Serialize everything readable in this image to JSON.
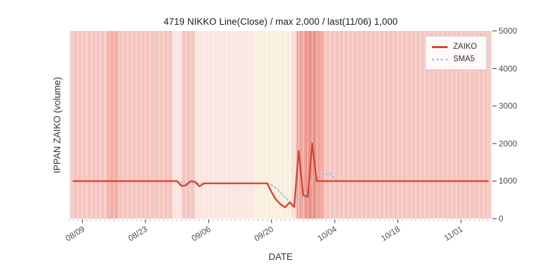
{
  "chart_data": {
    "type": "line",
    "title": "4719 NIKKO Line(Close) / max 2,000 / last(11/06) 1,000",
    "xlabel": "DATE",
    "ylabel": "IPPAN ZAIKO (volume)",
    "ylim": [
      0,
      5000
    ],
    "grid": false,
    "legend_position": "upper right",
    "y_ticks": [
      0,
      1000,
      2000,
      3000,
      4000,
      5000
    ],
    "x_domain_days": [
      0,
      94
    ],
    "x_ticks": [
      {
        "day": 3,
        "label": "08/09"
      },
      {
        "day": 17,
        "label": "08/23"
      },
      {
        "day": 31,
        "label": "09/06"
      },
      {
        "day": 45,
        "label": "09/20"
      },
      {
        "day": 59,
        "label": "10/04"
      },
      {
        "day": 73,
        "label": "10/18"
      },
      {
        "day": 87,
        "label": "11/01"
      }
    ],
    "series": [
      {
        "name": "ZAIKO",
        "color": "#d9432f",
        "style": "solid",
        "points": [
          [
            1,
            1000
          ],
          [
            24,
            1000
          ],
          [
            25,
            870
          ],
          [
            26,
            890
          ],
          [
            27,
            1000
          ],
          [
            28,
            980
          ],
          [
            29,
            860
          ],
          [
            30,
            940
          ],
          [
            44,
            940
          ],
          [
            45,
            700
          ],
          [
            46,
            500
          ],
          [
            47,
            380
          ],
          [
            48,
            300
          ],
          [
            49,
            430
          ],
          [
            50,
            310
          ],
          [
            51,
            1800
          ],
          [
            52,
            620
          ],
          [
            53,
            580
          ],
          [
            54,
            2000
          ],
          [
            55,
            1000
          ],
          [
            93,
            1000
          ]
        ]
      },
      {
        "name": "SMA5",
        "color": "#a9c5e2",
        "style": "dotted",
        "points": [
          [
            1,
            1000
          ],
          [
            24,
            1000
          ],
          [
            26,
            950
          ],
          [
            28,
            945
          ],
          [
            30,
            935
          ],
          [
            44,
            940
          ],
          [
            45,
            895
          ],
          [
            46,
            805
          ],
          [
            47,
            690
          ],
          [
            48,
            560
          ],
          [
            49,
            460
          ],
          [
            50,
            385
          ],
          [
            51,
            520
          ],
          [
            52,
            640
          ],
          [
            53,
            745
          ],
          [
            54,
            1050
          ],
          [
            55,
            1200
          ],
          [
            56,
            1230
          ],
          [
            57,
            1180
          ],
          [
            58,
            1200
          ],
          [
            59,
            1060
          ],
          [
            60,
            1000
          ],
          [
            92,
            1000
          ]
        ]
      }
    ],
    "background_bands": [
      {
        "start": 0.4,
        "end": 8.5,
        "color": "#f5c5bf"
      },
      {
        "start": 8.5,
        "end": 11,
        "color": "#f1afa7"
      },
      {
        "start": 11,
        "end": 23,
        "color": "#f5c5bf"
      },
      {
        "start": 23,
        "end": 25,
        "color": "#fbe3de"
      },
      {
        "start": 25,
        "end": 28,
        "color": "#f5c5bf"
      },
      {
        "start": 28,
        "end": 41,
        "color": "#fbe5e0"
      },
      {
        "start": 41,
        "end": 49.5,
        "color": "#f9efdf"
      },
      {
        "start": 49.5,
        "end": 50.5,
        "color": "#f8dcd4"
      },
      {
        "start": 50.5,
        "end": 52.5,
        "color": "#efa49b"
      },
      {
        "start": 52.5,
        "end": 55,
        "color": "#eb9288"
      },
      {
        "start": 55,
        "end": 56.5,
        "color": "#efa49b"
      },
      {
        "start": 56.5,
        "end": 93.6,
        "color": "#f5c5bf"
      }
    ]
  }
}
